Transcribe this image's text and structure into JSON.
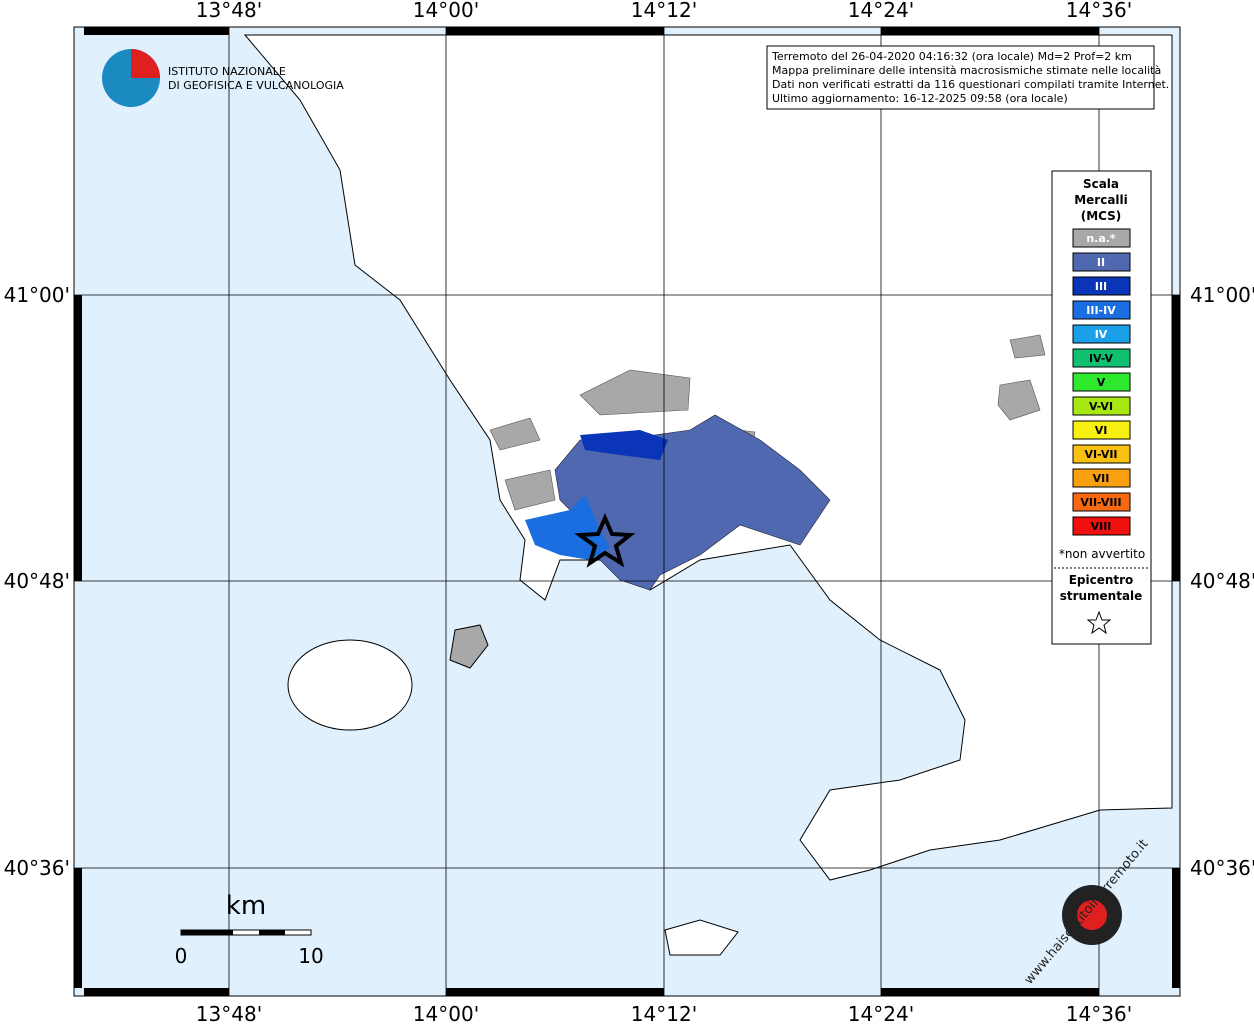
{
  "axes": {
    "longitude": [
      "13°48'",
      "14°00'",
      "14°12'",
      "14°24'",
      "14°36'"
    ],
    "latitude": [
      "41°00'",
      "40°48'",
      "40°36'"
    ]
  },
  "logo": {
    "lines": [
      "ISTITUTO NAZIONALE",
      "DI GEOFISICA E VULCANOLOGIA"
    ]
  },
  "info": {
    "lines": [
      "Terremoto del 26-04-2020 04:16:32 (ora locale) Md=2 Prof=2 km",
      "Mappa preliminare delle intensità macrosismiche stimate nelle località",
      "Dati non verificati estratti da 116 questionari compilati tramite Internet.",
      "Ultimo aggiornamento: 16-12-2025 09:58 (ora locale)"
    ]
  },
  "legend": {
    "title": [
      "Scala",
      "Mercalli",
      "(MCS)"
    ],
    "items": [
      {
        "label": "n.a.*",
        "color": "#a8a8a8"
      },
      {
        "label": "II",
        "color": "#5068b0"
      },
      {
        "label": "III",
        "color": "#0a35b8"
      },
      {
        "label": "III-IV",
        "color": "#1a6ee0"
      },
      {
        "label": "IV",
        "color": "#1aa0e8"
      },
      {
        "label": "IV-V",
        "color": "#10c070"
      },
      {
        "label": "V",
        "color": "#2ee82e"
      },
      {
        "label": "V-VI",
        "color": "#a8e812"
      },
      {
        "label": "VI",
        "color": "#f8f010"
      },
      {
        "label": "VI-VII",
        "color": "#f8c010"
      },
      {
        "label": "VII",
        "color": "#f8a010"
      },
      {
        "label": "VII-VIII",
        "color": "#f86810"
      },
      {
        "label": "VIII",
        "color": "#f01010"
      }
    ],
    "footnote": "*non avvertito",
    "epicenter": [
      "Epicentro",
      "strumentale"
    ]
  },
  "scale_bar": {
    "unit": "km",
    "labels": [
      "0",
      "10"
    ]
  },
  "watermark": "www.haisentitoilterremoto.it"
}
